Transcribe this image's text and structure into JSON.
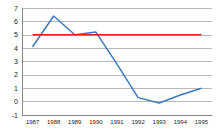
{
  "chart_data": {
    "type": "line",
    "categories": [
      "1987",
      "1988",
      "1989",
      "1990",
      "1991",
      "1992",
      "1993",
      "1994",
      "1995"
    ],
    "series": [
      {
        "color": "#3a7abf",
        "values": [
          4.1,
          6.4,
          5.0,
          5.2,
          2.8,
          0.3,
          -0.1,
          0.5,
          1.0
        ]
      },
      {
        "color": "#e8201a",
        "values": [
          5,
          5,
          5,
          5,
          5,
          5,
          5,
          5,
          5
        ]
      }
    ],
    "ylim": [
      -1,
      7
    ],
    "yticks": [
      -1,
      0,
      1,
      2,
      3,
      4,
      5,
      6,
      7
    ],
    "grid": true
  }
}
